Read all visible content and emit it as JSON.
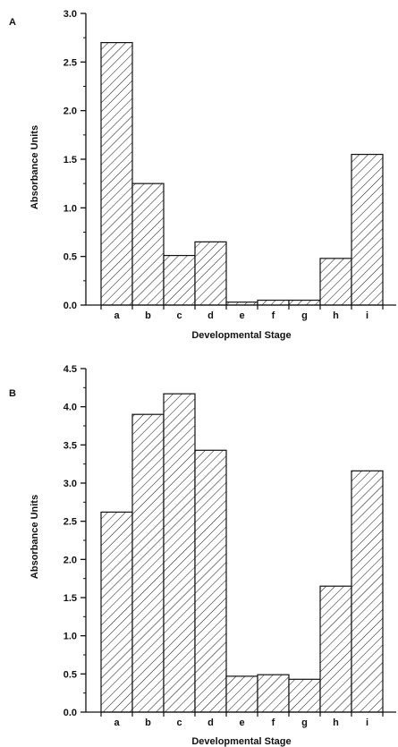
{
  "chart_data": [
    {
      "type": "bar",
      "panel_label": "A",
      "categories": [
        "a",
        "b",
        "c",
        "d",
        "e",
        "f",
        "g",
        "h",
        "i"
      ],
      "values": [
        2.7,
        1.25,
        0.51,
        0.65,
        0.03,
        0.05,
        0.05,
        0.48,
        1.55
      ],
      "ylim": [
        0,
        3.0
      ],
      "yticks": [
        "0.0",
        "0.5",
        "1.0",
        "1.5",
        "2.0",
        "2.5",
        "3.0"
      ],
      "xlabel": "Developmental Stage",
      "ylabel": "Absorbance Units",
      "grid": false,
      "bar_fill": "diagonal hatch",
      "bar_color": "#111111"
    },
    {
      "type": "bar",
      "panel_label": "B",
      "categories": [
        "a",
        "b",
        "c",
        "d",
        "e",
        "f",
        "g",
        "h",
        "i"
      ],
      "values": [
        2.62,
        3.9,
        4.17,
        3.43,
        0.47,
        0.49,
        0.43,
        1.65,
        3.16
      ],
      "ylim": [
        0,
        4.5
      ],
      "yticks": [
        "0.0",
        "0.5",
        "1.0",
        "1.5",
        "2.0",
        "2.5",
        "3.0",
        "3.5",
        "4.0",
        "4.5"
      ],
      "xlabel": "Developmental Stage",
      "ylabel": "Absorbance Units",
      "grid": false,
      "bar_fill": "diagonal hatch",
      "bar_color": "#111111"
    }
  ]
}
